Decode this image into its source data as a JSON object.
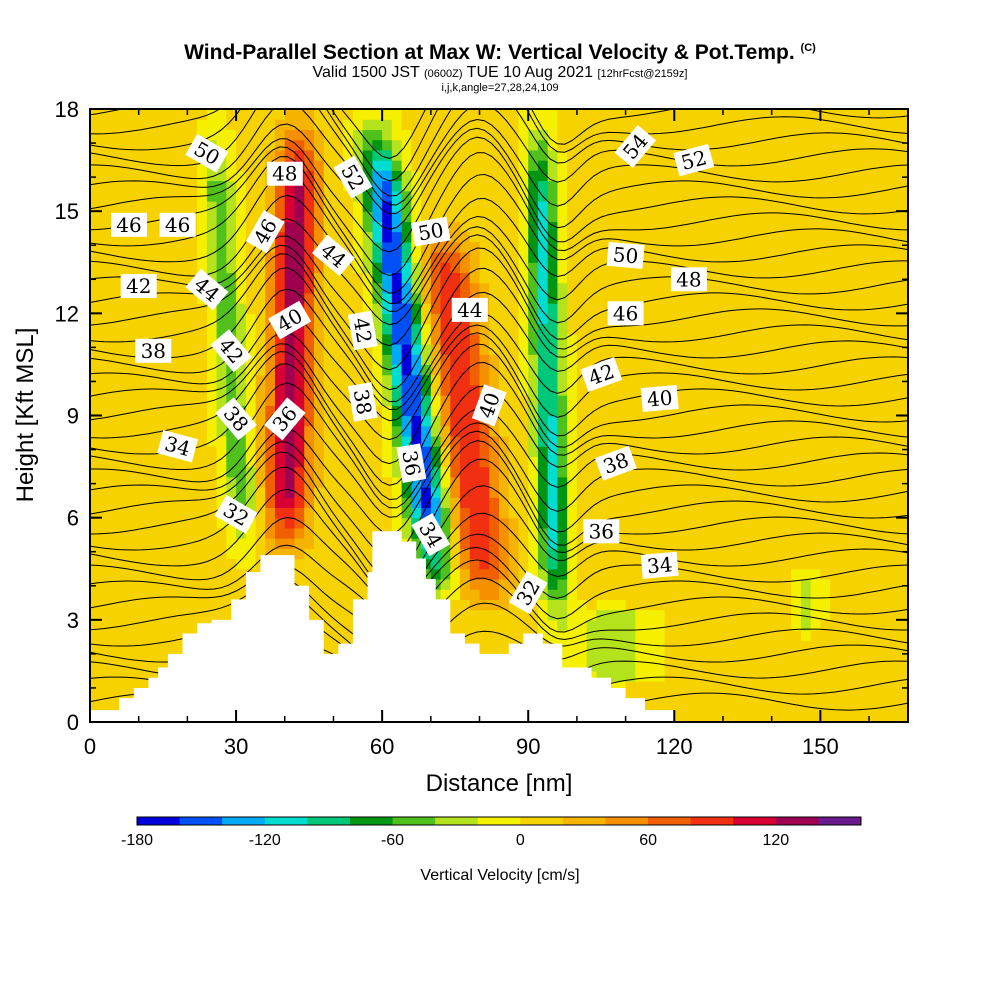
{
  "header": {
    "title": "Wind-Parallel Section at Max W: Vertical Velocity & Pot.Temp.",
    "title_mark": "(C)",
    "valid_prefix": "Valid 1500 JST",
    "valid_z": "(0600Z)",
    "valid_date": "TUE 10 Aug 2021",
    "forecast_tag": "[12hrFcst@2159z]",
    "indices": "i,j,k,angle=27,28,24,109"
  },
  "chart_data": {
    "type": "heatmap",
    "title": "Wind-Parallel Section at Max W: Vertical Velocity & Pot.Temp.",
    "xlabel": "Distance [nm]",
    "ylabel": "Height [Kft MSL]",
    "xlim": [
      0,
      168
    ],
    "ylim": [
      0,
      18
    ],
    "x_ticks": [
      0,
      30,
      60,
      90,
      120,
      150
    ],
    "y_ticks": [
      0,
      3,
      6,
      9,
      12,
      15,
      18
    ],
    "filled_field": {
      "name": "Vertical Velocity [cm/s]",
      "background_value": 5,
      "bands": [
        {
          "label": "updraft-1",
          "x_bottom": 40,
          "x_top": 43,
          "y_from": 4.5,
          "y_to": 18,
          "peak": 125,
          "half_width": 4.5
        },
        {
          "label": "downdraft-1",
          "x_bottom": 32,
          "x_top": 25,
          "y_from": 4.5,
          "y_to": 18,
          "peak": -55,
          "half_width": 3.5
        },
        {
          "label": "downdraft-2",
          "x_bottom": 72,
          "x_top": 58,
          "y_from": 3.5,
          "y_to": 18,
          "peak": -170,
          "half_width": 4
        },
        {
          "label": "updraft-2",
          "x_bottom": 82,
          "x_top": 72,
          "y_from": 3,
          "y_to": 15,
          "peak": 95,
          "half_width": 5.5
        },
        {
          "label": "downdraft-3",
          "x_bottom": 96,
          "x_top": 92,
          "y_from": 2.5,
          "y_to": 18,
          "peak": -110,
          "half_width": 3
        },
        {
          "label": "weak-down-east",
          "x_bottom": 108,
          "x_top": 108,
          "y_from": 1,
          "y_to": 3.5,
          "peak": -35,
          "half_width": 9
        },
        {
          "label": "weak-down-far-east",
          "x_bottom": 147,
          "x_top": 147,
          "y_from": 2.5,
          "y_to": 4.5,
          "peak": -30,
          "half_width": 3
        }
      ]
    },
    "contour_field": {
      "name": "Pot.Temp.",
      "interval": 1,
      "labels": [
        {
          "value": "50",
          "x": 24,
          "y": 16.7,
          "angle": 30
        },
        {
          "value": "48",
          "x": 40,
          "y": 16.1,
          "angle": 0
        },
        {
          "value": "52",
          "x": 54,
          "y": 16.0,
          "angle": 60
        },
        {
          "value": "54",
          "x": 112,
          "y": 16.9,
          "angle": -50
        },
        {
          "value": "52",
          "x": 124,
          "y": 16.5,
          "angle": -15
        },
        {
          "value": "46",
          "x": 8,
          "y": 14.6,
          "angle": 0
        },
        {
          "value": "46",
          "x": 18,
          "y": 14.6,
          "angle": 0
        },
        {
          "value": "46",
          "x": 36,
          "y": 14.4,
          "angle": -60
        },
        {
          "value": "44",
          "x": 50,
          "y": 13.7,
          "angle": 40
        },
        {
          "value": "50",
          "x": 70,
          "y": 14.4,
          "angle": -10
        },
        {
          "value": "50",
          "x": 110,
          "y": 13.7,
          "angle": 5
        },
        {
          "value": "48",
          "x": 123,
          "y": 13.0,
          "angle": 0
        },
        {
          "value": "42",
          "x": 10,
          "y": 12.8,
          "angle": 0
        },
        {
          "value": "44",
          "x": 24,
          "y": 12.7,
          "angle": 40
        },
        {
          "value": "40",
          "x": 41,
          "y": 11.8,
          "angle": -30
        },
        {
          "value": "42",
          "x": 56,
          "y": 11.5,
          "angle": 80
        },
        {
          "value": "44",
          "x": 78,
          "y": 12.1,
          "angle": 0
        },
        {
          "value": "46",
          "x": 110,
          "y": 12.0,
          "angle": 0
        },
        {
          "value": "38",
          "x": 13,
          "y": 10.9,
          "angle": 0
        },
        {
          "value": "42",
          "x": 29,
          "y": 10.9,
          "angle": 50
        },
        {
          "value": "42",
          "x": 105,
          "y": 10.2,
          "angle": -20
        },
        {
          "value": "38",
          "x": 56,
          "y": 9.4,
          "angle": 80
        },
        {
          "value": "38",
          "x": 30,
          "y": 8.9,
          "angle": 50
        },
        {
          "value": "36",
          "x": 40,
          "y": 8.9,
          "angle": -50
        },
        {
          "value": "40",
          "x": 82,
          "y": 9.3,
          "angle": -70
        },
        {
          "value": "40",
          "x": 117,
          "y": 9.5,
          "angle": -5
        },
        {
          "value": "34",
          "x": 18,
          "y": 8.1,
          "angle": 15
        },
        {
          "value": "36",
          "x": 66,
          "y": 7.6,
          "angle": 80
        },
        {
          "value": "38",
          "x": 108,
          "y": 7.6,
          "angle": -20
        },
        {
          "value": "32",
          "x": 30,
          "y": 6.1,
          "angle": 30
        },
        {
          "value": "34",
          "x": 70,
          "y": 5.5,
          "angle": 60
        },
        {
          "value": "36",
          "x": 105,
          "y": 5.6,
          "angle": 0
        },
        {
          "value": "34",
          "x": 117,
          "y": 4.6,
          "angle": -5
        },
        {
          "value": "32",
          "x": 90,
          "y": 3.8,
          "angle": -60
        }
      ]
    },
    "terrain_kft": [
      {
        "x": 0,
        "y": 0.35
      },
      {
        "x": 6,
        "y": 0.35
      },
      {
        "x": 6,
        "y": 0.7
      },
      {
        "x": 9,
        "y": 0.7
      },
      {
        "x": 9,
        "y": 1.0
      },
      {
        "x": 12,
        "y": 1.0
      },
      {
        "x": 12,
        "y": 1.3
      },
      {
        "x": 14,
        "y": 1.3
      },
      {
        "x": 14,
        "y": 1.6
      },
      {
        "x": 16,
        "y": 1.6
      },
      {
        "x": 16,
        "y": 2.0
      },
      {
        "x": 19,
        "y": 2.0
      },
      {
        "x": 19,
        "y": 2.6
      },
      {
        "x": 22,
        "y": 2.6
      },
      {
        "x": 22,
        "y": 2.9
      },
      {
        "x": 25,
        "y": 2.9
      },
      {
        "x": 25,
        "y": 3.0
      },
      {
        "x": 29,
        "y": 3.0
      },
      {
        "x": 29,
        "y": 3.6
      },
      {
        "x": 32,
        "y": 3.6
      },
      {
        "x": 32,
        "y": 4.4
      },
      {
        "x": 35,
        "y": 4.4
      },
      {
        "x": 35,
        "y": 4.9
      },
      {
        "x": 42,
        "y": 4.9
      },
      {
        "x": 42,
        "y": 4.0
      },
      {
        "x": 45,
        "y": 4.0
      },
      {
        "x": 45,
        "y": 3.0
      },
      {
        "x": 48,
        "y": 3.0
      },
      {
        "x": 48,
        "y": 2.0
      },
      {
        "x": 51,
        "y": 2.0
      },
      {
        "x": 51,
        "y": 2.3
      },
      {
        "x": 54,
        "y": 2.3
      },
      {
        "x": 54,
        "y": 3.6
      },
      {
        "x": 57,
        "y": 3.6
      },
      {
        "x": 57,
        "y": 4.4
      },
      {
        "x": 58,
        "y": 4.4
      },
      {
        "x": 58,
        "y": 5.6
      },
      {
        "x": 64,
        "y": 5.6
      },
      {
        "x": 64,
        "y": 5.3
      },
      {
        "x": 67,
        "y": 5.3
      },
      {
        "x": 67,
        "y": 4.8
      },
      {
        "x": 69,
        "y": 4.8
      },
      {
        "x": 69,
        "y": 4.2
      },
      {
        "x": 71,
        "y": 4.2
      },
      {
        "x": 71,
        "y": 3.6
      },
      {
        "x": 74,
        "y": 3.6
      },
      {
        "x": 74,
        "y": 2.6
      },
      {
        "x": 77,
        "y": 2.6
      },
      {
        "x": 77,
        "y": 2.3
      },
      {
        "x": 80,
        "y": 2.3
      },
      {
        "x": 80,
        "y": 2.0
      },
      {
        "x": 86,
        "y": 2.0
      },
      {
        "x": 86,
        "y": 2.3
      },
      {
        "x": 89,
        "y": 2.3
      },
      {
        "x": 89,
        "y": 2.6
      },
      {
        "x": 93,
        "y": 2.6
      },
      {
        "x": 93,
        "y": 2.3
      },
      {
        "x": 97,
        "y": 2.3
      },
      {
        "x": 97,
        "y": 1.6
      },
      {
        "x": 103,
        "y": 1.6
      },
      {
        "x": 103,
        "y": 1.3
      },
      {
        "x": 107,
        "y": 1.3
      },
      {
        "x": 107,
        "y": 1.0
      },
      {
        "x": 110,
        "y": 1.0
      },
      {
        "x": 110,
        "y": 0.7
      },
      {
        "x": 114,
        "y": 0.7
      },
      {
        "x": 114,
        "y": 0.35
      },
      {
        "x": 120,
        "y": 0.35
      },
      {
        "x": 120,
        "y": 0
      }
    ]
  },
  "colorbar": {
    "title": "Vertical Velocity [cm/s]",
    "min": -180,
    "step": 20,
    "tick_labels": [
      "-180",
      "-120",
      "-60",
      "0",
      "60",
      "120"
    ],
    "tick_values": [
      -180,
      -120,
      -60,
      0,
      60,
      120
    ],
    "colors": [
      "#0000dd",
      "#0050f5",
      "#00aaf5",
      "#00dcd0",
      "#00c87a",
      "#009614",
      "#50c01c",
      "#b4e21c",
      "#f5f000",
      "#f5d200",
      "#f5b400",
      "#f59000",
      "#f06000",
      "#f03010",
      "#d80032",
      "#a00050",
      "#6a1a8c"
    ]
  }
}
